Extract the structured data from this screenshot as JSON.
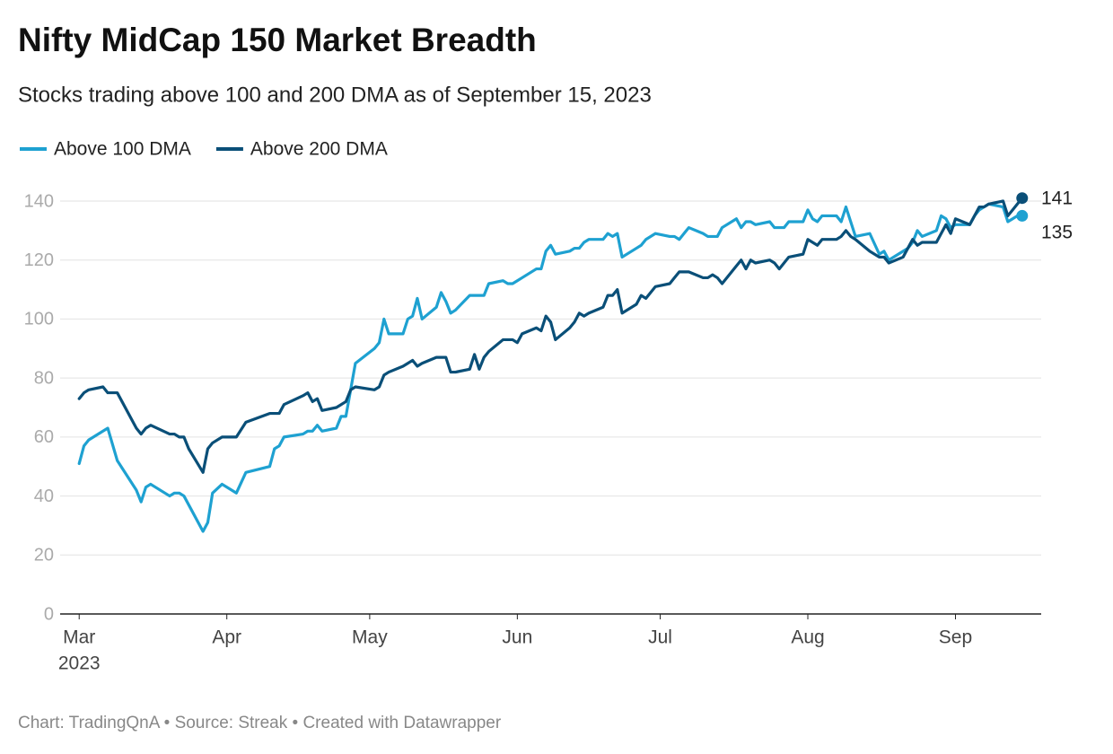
{
  "chart_data": {
    "type": "line",
    "title": "Nifty MidCap 150 Market Breadth",
    "subtitle": "Stocks trading above 100 and 200 DMA as of September 15, 2023",
    "footer": "Chart: TradingQnA • Source: Streak • Created with Datawrapper",
    "x_year": "2023",
    "x": [
      "2023-03-01",
      "2023-03-02",
      "2023-03-03",
      "2023-03-06",
      "2023-03-07",
      "2023-03-09",
      "2023-03-13",
      "2023-03-14",
      "2023-03-15",
      "2023-03-16",
      "2023-03-20",
      "2023-03-21",
      "2023-03-22",
      "2023-03-23",
      "2023-03-24",
      "2023-03-27",
      "2023-03-28",
      "2023-03-29",
      "2023-03-31",
      "2023-04-03",
      "2023-04-05",
      "2023-04-10",
      "2023-04-11",
      "2023-04-12",
      "2023-04-13",
      "2023-04-17",
      "2023-04-18",
      "2023-04-19",
      "2023-04-20",
      "2023-04-21",
      "2023-04-24",
      "2023-04-25",
      "2023-04-26",
      "2023-04-27",
      "2023-04-28",
      "2023-05-02",
      "2023-05-03",
      "2023-05-04",
      "2023-05-05",
      "2023-05-08",
      "2023-05-09",
      "2023-05-10",
      "2023-05-11",
      "2023-05-12",
      "2023-05-15",
      "2023-05-16",
      "2023-05-17",
      "2023-05-18",
      "2023-05-19",
      "2023-05-22",
      "2023-05-23",
      "2023-05-24",
      "2023-05-25",
      "2023-05-26",
      "2023-05-29",
      "2023-05-30",
      "2023-05-31",
      "2023-06-01",
      "2023-06-02",
      "2023-06-05",
      "2023-06-06",
      "2023-06-07",
      "2023-06-08",
      "2023-06-09",
      "2023-06-12",
      "2023-06-13",
      "2023-06-14",
      "2023-06-15",
      "2023-06-16",
      "2023-06-19",
      "2023-06-20",
      "2023-06-21",
      "2023-06-22",
      "2023-06-23",
      "2023-06-26",
      "2023-06-27",
      "2023-06-28",
      "2023-06-30",
      "2023-07-03",
      "2023-07-04",
      "2023-07-05",
      "2023-07-06",
      "2023-07-07",
      "2023-07-10",
      "2023-07-11",
      "2023-07-12",
      "2023-07-13",
      "2023-07-14",
      "2023-07-17",
      "2023-07-18",
      "2023-07-19",
      "2023-07-20",
      "2023-07-21",
      "2023-07-24",
      "2023-07-25",
      "2023-07-26",
      "2023-07-27",
      "2023-07-28",
      "2023-07-31",
      "2023-08-01",
      "2023-08-02",
      "2023-08-03",
      "2023-08-04",
      "2023-08-07",
      "2023-08-08",
      "2023-08-09",
      "2023-08-10",
      "2023-08-11",
      "2023-08-14",
      "2023-08-16",
      "2023-08-17",
      "2023-08-18",
      "2023-08-21",
      "2023-08-22",
      "2023-08-23",
      "2023-08-24",
      "2023-08-25",
      "2023-08-28",
      "2023-08-29",
      "2023-08-30",
      "2023-08-31",
      "2023-09-01",
      "2023-09-04",
      "2023-09-05",
      "2023-09-06",
      "2023-09-07",
      "2023-09-08",
      "2023-09-11",
      "2023-09-12",
      "2023-09-13",
      "2023-09-14",
      "2023-09-15"
    ],
    "series": [
      {
        "name": "Above 100 DMA",
        "color": "#1ea1d1",
        "values": [
          51,
          57,
          59,
          62,
          63,
          52,
          42,
          38,
          43,
          44,
          40,
          41,
          41,
          40,
          37,
          28,
          31,
          41,
          44,
          41,
          48,
          50,
          56,
          57,
          60,
          61,
          62,
          62,
          64,
          62,
          63,
          67,
          67,
          76,
          85,
          90,
          92,
          100,
          95,
          95,
          100,
          101,
          107,
          100,
          104,
          109,
          106,
          102,
          103,
          108,
          108,
          108,
          108,
          112,
          113,
          112,
          112,
          113,
          114,
          117,
          117,
          123,
          125,
          122,
          123,
          124,
          124,
          126,
          127,
          127,
          129,
          128,
          129,
          121,
          124,
          125,
          127,
          129,
          128,
          128,
          127,
          129,
          131,
          129,
          128,
          128,
          128,
          131,
          134,
          131,
          133,
          133,
          132,
          133,
          131,
          131,
          131,
          133,
          133,
          137,
          134,
          133,
          135,
          135,
          133,
          138,
          133,
          128,
          129,
          122,
          123,
          120,
          123,
          124,
          126,
          130,
          128,
          130,
          135,
          134,
          131,
          132,
          132,
          135,
          137,
          138,
          139,
          138,
          133,
          134,
          135,
          135
        ]
      },
      {
        "name": "Above 200 DMA",
        "color": "#0a4f78",
        "values": [
          73,
          75,
          76,
          77,
          75,
          75,
          63,
          61,
          63,
          64,
          61,
          61,
          60,
          60,
          56,
          48,
          56,
          58,
          60,
          60,
          65,
          68,
          68,
          68,
          71,
          74,
          75,
          72,
          73,
          69,
          70,
          71,
          72,
          76,
          77,
          76,
          77,
          81,
          82,
          84,
          85,
          86,
          84,
          85,
          87,
          87,
          87,
          82,
          82,
          83,
          88,
          83,
          87,
          89,
          93,
          93,
          93,
          92,
          95,
          97,
          96,
          101,
          99,
          93,
          97,
          99,
          102,
          101,
          102,
          104,
          108,
          108,
          110,
          102,
          105,
          108,
          107,
          111,
          112,
          114,
          116,
          116,
          116,
          114,
          114,
          115,
          114,
          112,
          118,
          120,
          117,
          120,
          119,
          120,
          119,
          117,
          119,
          121,
          122,
          127,
          126,
          125,
          127,
          127,
          128,
          130,
          128,
          127,
          123,
          121,
          121,
          119,
          121,
          124,
          127,
          125,
          126,
          126,
          129,
          132,
          129,
          134,
          132,
          135,
          138,
          138,
          139,
          140,
          135,
          137,
          139,
          141
        ]
      }
    ],
    "xlim": [
      "2023-02-25",
      "2023-09-19"
    ],
    "xticks": [
      {
        "value": "2023-03-01",
        "label": "Mar"
      },
      {
        "value": "2023-04-01",
        "label": "Apr"
      },
      {
        "value": "2023-05-01",
        "label": "May"
      },
      {
        "value": "2023-06-01",
        "label": "Jun"
      },
      {
        "value": "2023-07-01",
        "label": "Jul"
      },
      {
        "value": "2023-08-01",
        "label": "Aug"
      },
      {
        "value": "2023-09-01",
        "label": "Sep"
      }
    ],
    "ylim": [
      0,
      140
    ],
    "yticks": [
      0,
      20,
      40,
      60,
      80,
      100,
      120,
      140
    ],
    "grid": true,
    "legend": "top-left"
  }
}
